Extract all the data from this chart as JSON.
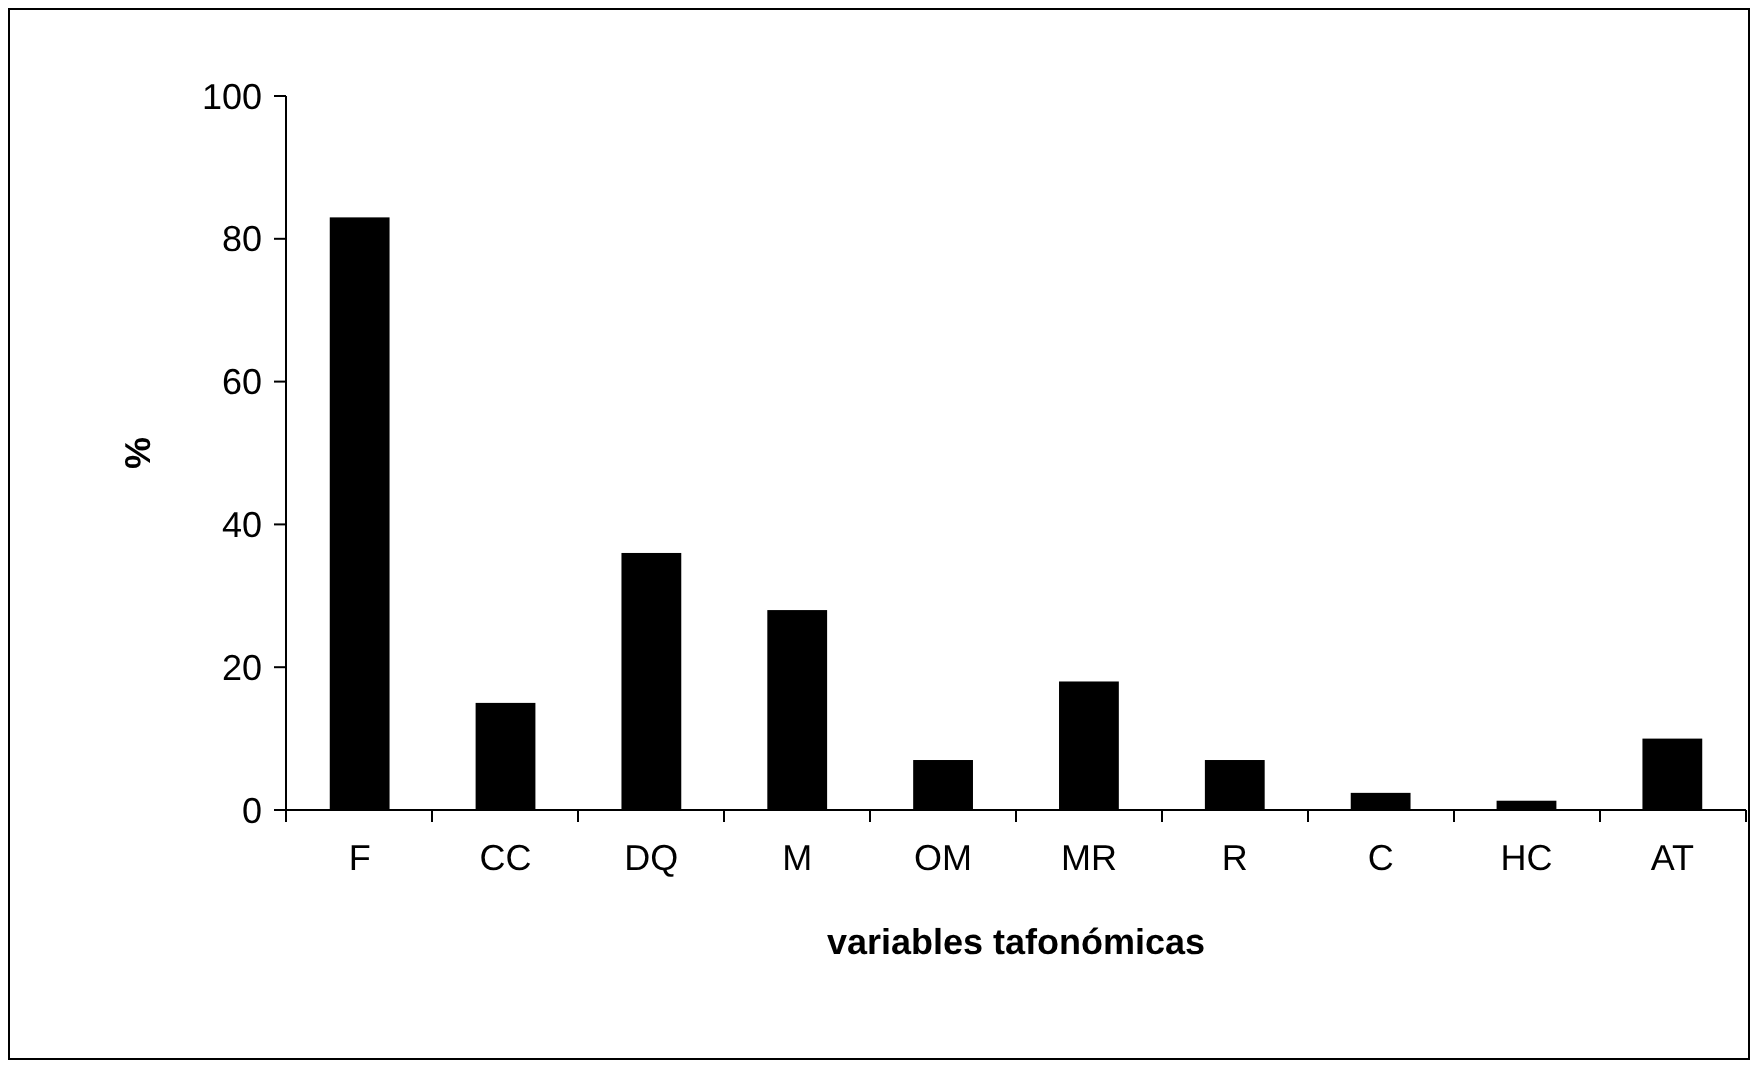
{
  "chart_data": {
    "type": "bar",
    "xlabel": "variables tafonómicas",
    "ylabel": "%",
    "categories": [
      "F",
      "CC",
      "DQ",
      "M",
      "OM",
      "MR",
      "R",
      "C",
      "HC",
      "AT"
    ],
    "values": [
      83,
      15,
      36,
      28,
      7,
      18,
      7,
      2.4,
      1.3,
      10
    ],
    "color": "#000000",
    "ylim": [
      0,
      100
    ],
    "yticks": [
      0,
      20,
      40,
      60,
      80,
      100
    ],
    "grid": false
  }
}
